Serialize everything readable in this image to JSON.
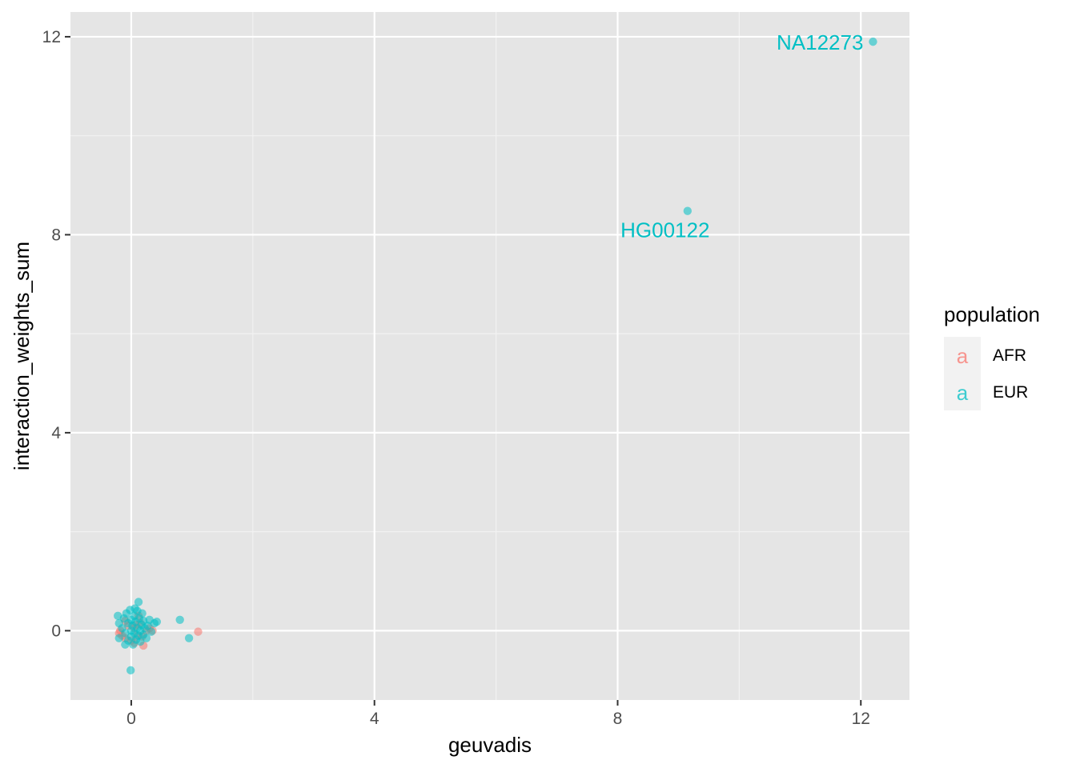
{
  "chart_data": {
    "type": "scatter",
    "xlabel": "geuvadis",
    "ylabel": "interaction_weights_sum",
    "xlim": [
      -1,
      12.8
    ],
    "ylim": [
      -1.4,
      12.5
    ],
    "x_ticks": [
      0,
      4,
      8,
      12
    ],
    "y_ticks": [
      0,
      4,
      8,
      12
    ],
    "x_tick_labels": [
      "0",
      "4",
      "8",
      "12"
    ],
    "y_tick_labels": [
      "0",
      "4",
      "8",
      "12"
    ],
    "grid": true,
    "legend": {
      "title": "population",
      "position": "right",
      "key_glyph": "a"
    },
    "series": [
      {
        "name": "AFR",
        "color": "#F8766D",
        "points": [
          [
            -0.2,
            -0.05
          ],
          [
            -0.15,
            -0.1
          ],
          [
            -0.1,
            -0.15
          ],
          [
            -0.05,
            0.1
          ],
          [
            0.0,
            -0.2
          ],
          [
            0.05,
            0.05
          ],
          [
            0.1,
            -0.1
          ],
          [
            0.15,
            0.15
          ],
          [
            0.2,
            -0.3
          ],
          [
            0.25,
            0.0
          ],
          [
            -0.1,
            0.2
          ],
          [
            0.05,
            -0.25
          ],
          [
            0.12,
            0.3
          ],
          [
            0.3,
            0.05
          ],
          [
            0.35,
            0.0
          ],
          [
            -0.18,
            0.0
          ],
          [
            0.08,
            0.12
          ],
          [
            0.18,
            -0.12
          ],
          [
            1.1,
            -0.02
          ]
        ]
      },
      {
        "name": "EUR",
        "color": "#00BFC4",
        "points": [
          [
            -0.22,
            0.3
          ],
          [
            -0.2,
            0.15
          ],
          [
            -0.2,
            -0.15
          ],
          [
            -0.15,
            0.05
          ],
          [
            -0.12,
            0.25
          ],
          [
            -0.1,
            -0.05
          ],
          [
            -0.08,
            0.35
          ],
          [
            -0.05,
            0.15
          ],
          [
            -0.05,
            -0.2
          ],
          [
            -0.02,
            0.42
          ],
          [
            0.0,
            0.0
          ],
          [
            0.0,
            0.22
          ],
          [
            0.0,
            -0.12
          ],
          [
            0.02,
            0.1
          ],
          [
            0.03,
            -0.28
          ],
          [
            0.05,
            0.3
          ],
          [
            0.05,
            -0.05
          ],
          [
            0.07,
            0.18
          ],
          [
            0.08,
            -0.18
          ],
          [
            0.1,
            0.4
          ],
          [
            0.1,
            0.05
          ],
          [
            0.12,
            -0.1
          ],
          [
            0.13,
            0.25
          ],
          [
            0.15,
            0.0
          ],
          [
            0.15,
            -0.22
          ],
          [
            0.17,
            0.12
          ],
          [
            0.18,
            0.35
          ],
          [
            0.2,
            -0.08
          ],
          [
            0.2,
            0.2
          ],
          [
            0.22,
            0.05
          ],
          [
            0.25,
            -0.15
          ],
          [
            0.27,
            0.1
          ],
          [
            0.3,
            0.22
          ],
          [
            0.33,
            -0.02
          ],
          [
            0.38,
            0.15
          ],
          [
            0.42,
            0.18
          ],
          [
            0.12,
            0.58
          ],
          [
            -0.1,
            -0.28
          ],
          [
            0.06,
            0.45
          ],
          [
            -0.01,
            -0.8
          ],
          [
            0.8,
            0.22
          ],
          [
            0.95,
            -0.15
          ],
          [
            9.15,
            8.48
          ],
          [
            12.2,
            11.9
          ]
        ]
      }
    ],
    "annotations": [
      {
        "text": "NA12273",
        "x": 12.2,
        "y": 11.9,
        "series": "EUR"
      },
      {
        "text": "HG00122",
        "x": 9.15,
        "y": 8.48,
        "series": "EUR"
      }
    ]
  }
}
